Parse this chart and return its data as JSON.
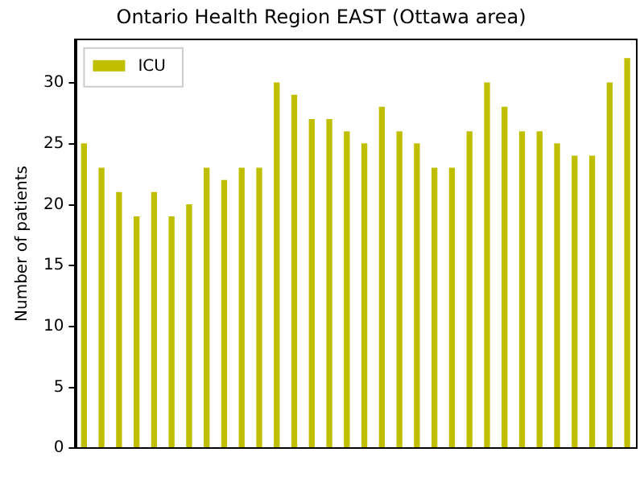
{
  "chart_data": {
    "type": "bar",
    "title": "Ontario Health Region EAST (Ottawa area)",
    "ylabel": "Number of patients",
    "categories": [
      null,
      null,
      null,
      null,
      null,
      null,
      null,
      null,
      null,
      null,
      null,
      null,
      null,
      null,
      null,
      null,
      null,
      null,
      null,
      null,
      null,
      null,
      null,
      null,
      null,
      null,
      null,
      null,
      null,
      null,
      null,
      null
    ],
    "series": [
      {
        "name": "ICU",
        "color": "#bfbf00",
        "values": [
          25,
          23,
          21,
          19,
          21,
          19,
          20,
          23,
          22,
          23,
          23,
          30,
          29,
          27,
          27,
          26,
          25,
          28,
          26,
          25,
          23,
          23,
          26,
          30,
          28,
          26,
          26,
          25,
          24,
          24,
          30,
          32
        ]
      }
    ],
    "ylim": [
      0,
      33.6
    ],
    "yticks": [
      0,
      5,
      10,
      15,
      20,
      25,
      30
    ],
    "grid": false,
    "legend": "top left"
  }
}
